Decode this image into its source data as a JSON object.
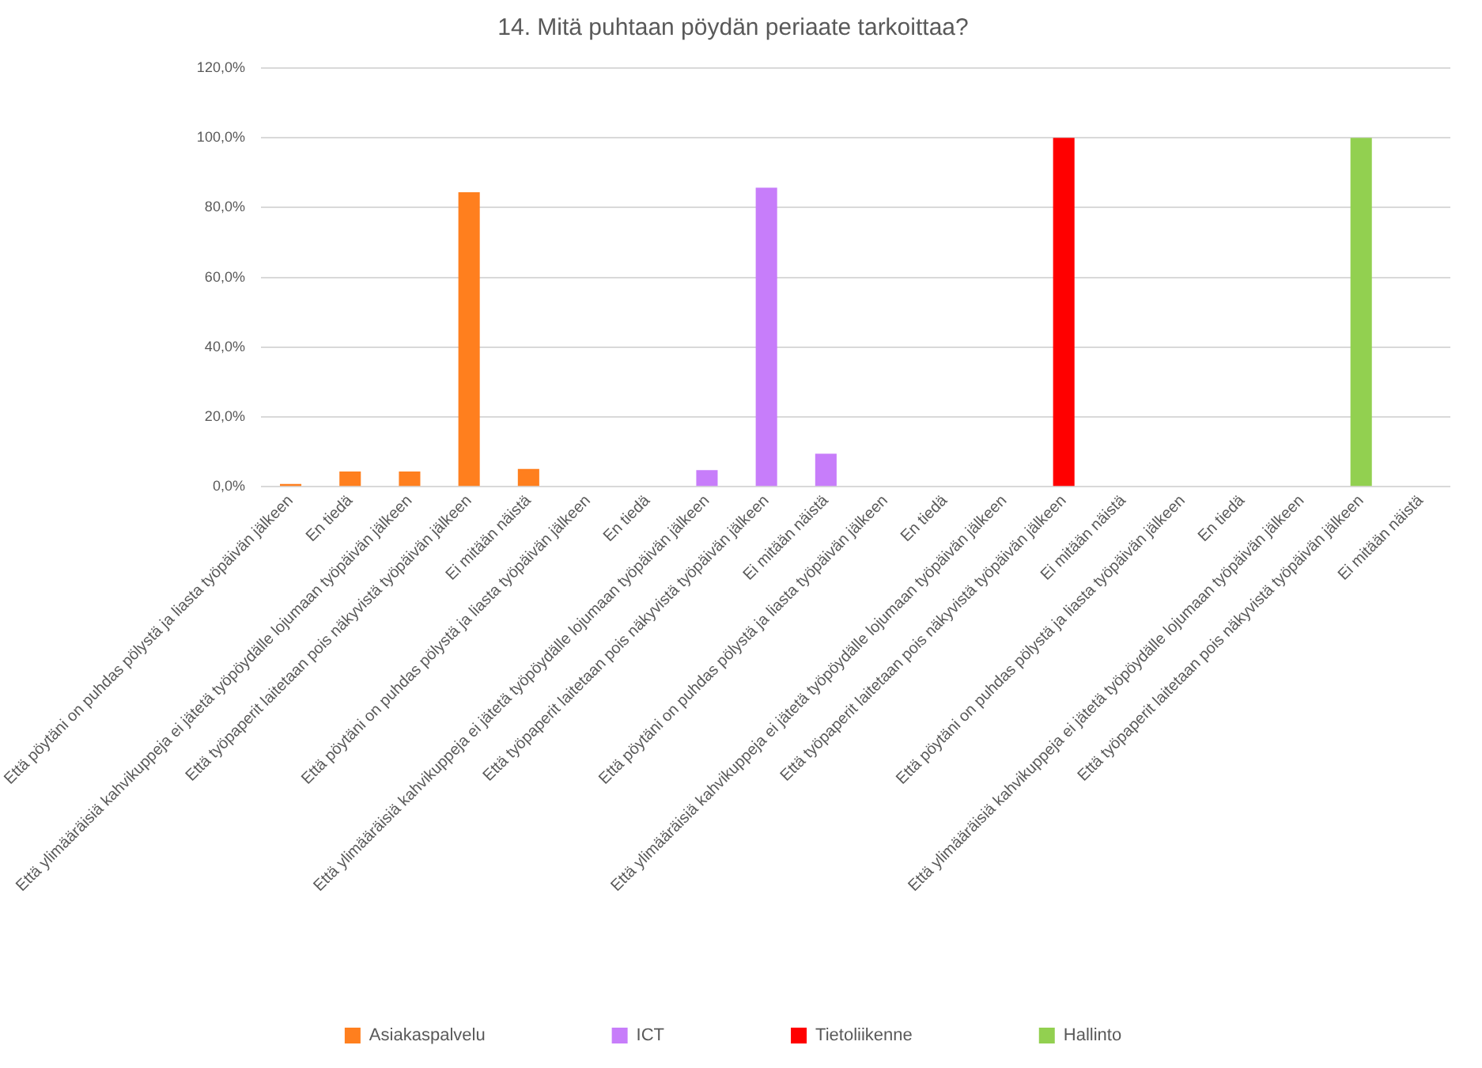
{
  "chart_data": {
    "type": "bar",
    "title": "14. Mitä puhtaan pöydän periaate tarkoittaa?",
    "categories": [
      "Että pöytäni on puhdas pölystä ja liasta työpäivän jälkeen",
      "En tiedä",
      "Että ylimääräisiä kahvikuppeja ei jätetä työpöydälle lojumaan työpäivän jälkeen",
      "Että työpaperit laitetaan pois näkyvistä työpäivän jälkeen",
      "Ei mitään näistä",
      "Että pöytäni on puhdas pölystä ja liasta työpäivän jälkeen",
      "En tiedä",
      "Että ylimääräisiä kahvikuppeja ei jätetä työpöydälle lojumaan työpäivän jälkeen",
      "Että työpaperit laitetaan pois näkyvistä työpäivän jälkeen",
      "Ei mitään näistä",
      "Että pöytäni on puhdas pölystä ja liasta työpäivän jälkeen",
      "En tiedä",
      "Että ylimääräisiä kahvikuppeja ei jätetä työpöydälle lojumaan työpäivän jälkeen",
      "Että työpaperit laitetaan pois näkyvistä työpäivän jälkeen",
      "Ei mitään näistä",
      "Että pöytäni on puhdas pölystä ja liasta työpäivän jälkeen",
      "En tiedä",
      "Että ylimääräisiä kahvikuppeja ei jätetä työpöydälle lojumaan työpäivän jälkeen",
      "Että työpaperit laitetaan pois näkyvistä työpäivän jälkeen",
      "Ei mitään näistä"
    ],
    "series": [
      {
        "name": "Asiakaspalvelu",
        "color": "#ff7f1e",
        "values": [
          0.8,
          4.4,
          4.4,
          84.4,
          5.1,
          null,
          null,
          null,
          null,
          null,
          null,
          null,
          null,
          null,
          null,
          null,
          null,
          null,
          null,
          null
        ]
      },
      {
        "name": "ICT",
        "color": "#c77dfa",
        "values": [
          null,
          null,
          null,
          null,
          null,
          0,
          0,
          4.8,
          85.7,
          9.5,
          null,
          null,
          null,
          null,
          null,
          null,
          null,
          null,
          null,
          null
        ]
      },
      {
        "name": "Tietoliikenne",
        "color": "#ff0000",
        "values": [
          null,
          null,
          null,
          null,
          null,
          null,
          null,
          null,
          null,
          null,
          0,
          0,
          0,
          100,
          0,
          null,
          null,
          null,
          null,
          null
        ]
      },
      {
        "name": "Hallinto",
        "color": "#92d050",
        "values": [
          null,
          null,
          null,
          null,
          null,
          null,
          null,
          null,
          null,
          null,
          null,
          null,
          null,
          null,
          null,
          0,
          0,
          0,
          100,
          0
        ]
      }
    ],
    "ylim": [
      0,
      120
    ],
    "yticks": [
      {
        "value": 0,
        "label": "0,0%"
      },
      {
        "value": 20,
        "label": "20,0%"
      },
      {
        "value": 40,
        "label": "40,0%"
      },
      {
        "value": 60,
        "label": "60,0%"
      },
      {
        "value": 80,
        "label": "80,0%"
      },
      {
        "value": 100,
        "label": "100,0%"
      },
      {
        "value": 120,
        "label": "120,0%"
      }
    ],
    "grid": "y",
    "legend": "bottom"
  }
}
